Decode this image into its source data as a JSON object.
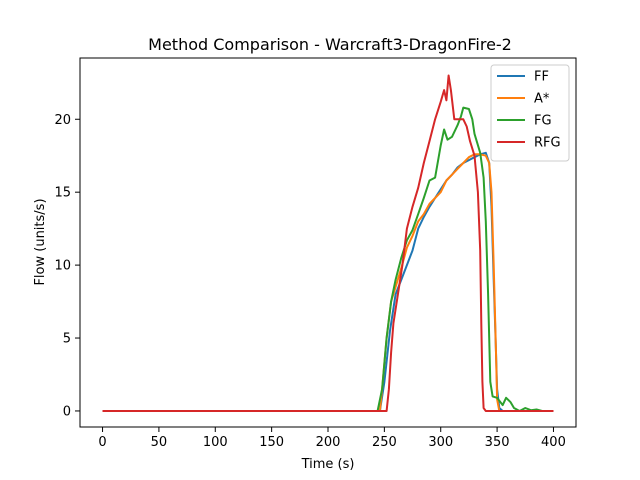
{
  "chart_data": {
    "type": "line",
    "title": "Method Comparison - Warcraft3-DragonFire-2",
    "xlabel": "Time (s)",
    "ylabel": "Flow (units/s)",
    "xlim": [
      -20,
      420
    ],
    "ylim": [
      -1.1,
      24.2
    ],
    "xticks": [
      0,
      50,
      100,
      150,
      200,
      250,
      300,
      350,
      400
    ],
    "yticks": [
      0,
      5,
      10,
      15,
      20
    ],
    "grid": false,
    "legend_position": "top-right",
    "series": [
      {
        "name": "FF",
        "color": "#1f77b4",
        "points": [
          [
            0,
            0
          ],
          [
            246,
            0
          ],
          [
            250,
            2
          ],
          [
            255,
            5.5
          ],
          [
            260,
            8
          ],
          [
            265,
            9
          ],
          [
            270,
            10
          ],
          [
            275,
            11
          ],
          [
            280,
            12.5
          ],
          [
            285,
            13.3
          ],
          [
            290,
            14
          ],
          [
            295,
            14.6
          ],
          [
            300,
            15.2
          ],
          [
            305,
            15.8
          ],
          [
            310,
            16.2
          ],
          [
            315,
            16.7
          ],
          [
            320,
            17
          ],
          [
            325,
            17.2
          ],
          [
            330,
            17.4
          ],
          [
            335,
            17.6
          ],
          [
            340,
            17.7
          ],
          [
            343,
            17
          ],
          [
            345,
            14
          ],
          [
            347,
            9
          ],
          [
            349,
            4
          ],
          [
            350,
            1.5
          ],
          [
            352,
            0.2
          ],
          [
            355,
            0
          ],
          [
            400,
            0
          ]
        ]
      },
      {
        "name": "A*",
        "color": "#ff7f0e",
        "points": [
          [
            0,
            0
          ],
          [
            246,
            0
          ],
          [
            248,
            1.5
          ],
          [
            252,
            5
          ],
          [
            256,
            7.5
          ],
          [
            260,
            8.5
          ],
          [
            265,
            9.8
          ],
          [
            270,
            11.2
          ],
          [
            275,
            12
          ],
          [
            280,
            13
          ],
          [
            285,
            13.5
          ],
          [
            290,
            14.2
          ],
          [
            295,
            14.6
          ],
          [
            300,
            15
          ],
          [
            305,
            15.8
          ],
          [
            310,
            16.2
          ],
          [
            315,
            16.6
          ],
          [
            320,
            17
          ],
          [
            325,
            17.4
          ],
          [
            330,
            17.6
          ],
          [
            335,
            17.6
          ],
          [
            340,
            17.5
          ],
          [
            343,
            17
          ],
          [
            345,
            15
          ],
          [
            347,
            10
          ],
          [
            349,
            4
          ],
          [
            350,
            0.8
          ],
          [
            352,
            0
          ],
          [
            400,
            0
          ]
        ]
      },
      {
        "name": "FG",
        "color": "#2ca02c",
        "points": [
          [
            0,
            0
          ],
          [
            244,
            0
          ],
          [
            248,
            1.5
          ],
          [
            252,
            5
          ],
          [
            256,
            7.5
          ],
          [
            260,
            9
          ],
          [
            265,
            10.5
          ],
          [
            270,
            11.7
          ],
          [
            275,
            12.4
          ],
          [
            280,
            13.5
          ],
          [
            285,
            14.6
          ],
          [
            290,
            15.8
          ],
          [
            295,
            16
          ],
          [
            300,
            18.2
          ],
          [
            303,
            19.3
          ],
          [
            306,
            18.6
          ],
          [
            310,
            18.8
          ],
          [
            315,
            19.6
          ],
          [
            318,
            20.2
          ],
          [
            320,
            20.8
          ],
          [
            325,
            20.7
          ],
          [
            328,
            20
          ],
          [
            330,
            19
          ],
          [
            335,
            17.7
          ],
          [
            338,
            16
          ],
          [
            340,
            13
          ],
          [
            342,
            8
          ],
          [
            344,
            2
          ],
          [
            346,
            1
          ],
          [
            350,
            0.9
          ],
          [
            355,
            0.4
          ],
          [
            358,
            0.9
          ],
          [
            362,
            0.6
          ],
          [
            365,
            0.2
          ],
          [
            370,
            0
          ],
          [
            375,
            0.2
          ],
          [
            380,
            0.05
          ],
          [
            385,
            0.1
          ],
          [
            390,
            0
          ],
          [
            400,
            0
          ]
        ]
      },
      {
        "name": "RFG",
        "color": "#d62728",
        "points": [
          [
            0,
            0
          ],
          [
            252,
            0
          ],
          [
            254,
            1.5
          ],
          [
            256,
            4
          ],
          [
            258,
            6
          ],
          [
            262,
            8
          ],
          [
            266,
            10
          ],
          [
            270,
            12.5
          ],
          [
            275,
            14
          ],
          [
            280,
            15.3
          ],
          [
            285,
            17
          ],
          [
            290,
            18.5
          ],
          [
            295,
            20
          ],
          [
            300,
            21.2
          ],
          [
            303,
            22
          ],
          [
            305,
            21.3
          ],
          [
            307,
            23
          ],
          [
            309,
            22
          ],
          [
            312,
            20
          ],
          [
            316,
            20
          ],
          [
            320,
            20
          ],
          [
            323,
            19.5
          ],
          [
            326,
            18.5
          ],
          [
            330,
            17.5
          ],
          [
            333,
            15
          ],
          [
            335,
            11
          ],
          [
            336,
            6
          ],
          [
            337,
            2
          ],
          [
            338,
            0.2
          ],
          [
            340,
            0
          ],
          [
            400,
            0
          ]
        ]
      }
    ]
  }
}
